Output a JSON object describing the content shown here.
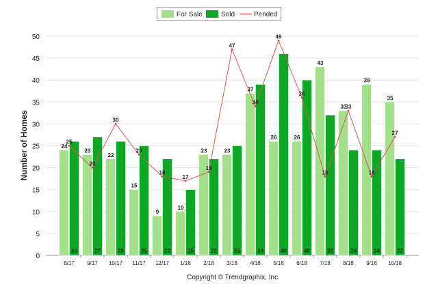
{
  "chart_data": {
    "type": "bar",
    "categories": [
      "8/17",
      "9/17",
      "10/17",
      "11/17",
      "12/17",
      "1/18",
      "2/18",
      "3/18",
      "4/18",
      "5/18",
      "6/18",
      "7/18",
      "8/18",
      "9/18",
      "10/18"
    ],
    "series": [
      {
        "name": "For Sale",
        "type": "bar",
        "color": "#a3e08a",
        "values": [
          24,
          23,
          22,
          15,
          9,
          10,
          23,
          23,
          37,
          26,
          26,
          43,
          33,
          39,
          35
        ]
      },
      {
        "name": "Sold",
        "type": "bar",
        "color": "#0ea826",
        "values": [
          26,
          27,
          26,
          25,
          22,
          15,
          22,
          25,
          39,
          46,
          40,
          32,
          24,
          24,
          22
        ]
      },
      {
        "name": "Pended",
        "type": "line",
        "color": "#e0524f",
        "values": [
          25,
          20,
          30,
          23,
          18,
          17,
          19,
          47,
          34,
          49,
          36,
          18,
          33,
          18,
          27
        ]
      }
    ],
    "title": "",
    "xlabel": "",
    "ylabel": "Number of Homes",
    "ylim": [
      0,
      50
    ],
    "yticks": [
      0,
      5,
      10,
      15,
      20,
      25,
      30,
      35,
      40,
      45,
      50
    ],
    "grid": true,
    "legend": "top-center"
  },
  "footer": {
    "copyright": "Copyright © Trendgraphix, Inc."
  }
}
